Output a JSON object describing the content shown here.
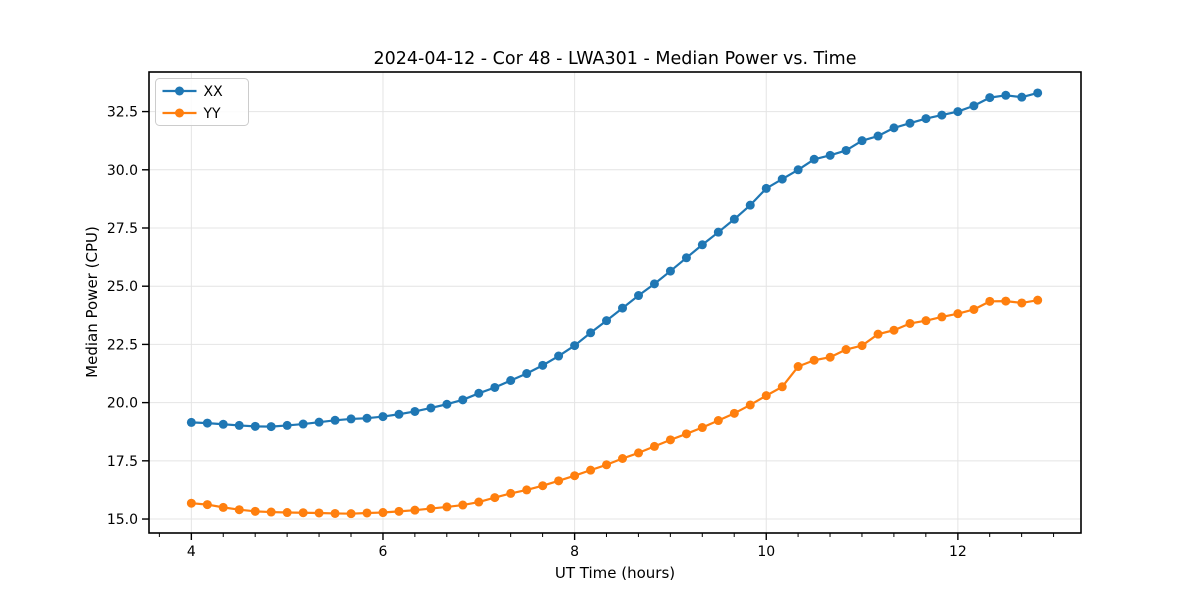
{
  "chart_data": {
    "type": "line",
    "title": "2024-04-12 - Cor 48 - LWA301 - Median Power vs. Time",
    "xlabel": "UT Time (hours)",
    "ylabel": "Median Power (CPU)",
    "xlim": [
      3.558,
      13.285
    ],
    "ylim": [
      14.4,
      34.2
    ],
    "xticks": [
      4,
      6,
      8,
      10,
      12
    ],
    "yticks": [
      15.0,
      17.5,
      20.0,
      22.5,
      25.0,
      27.5,
      30.0,
      32.5
    ],
    "x_minor_step": 0.3333,
    "grid": true,
    "legend_position": "upper left",
    "background_color": "#ffffff",
    "grid_color": "#e4e4e4",
    "x": [
      4.0,
      4.167,
      4.333,
      4.5,
      4.667,
      4.833,
      5.0,
      5.167,
      5.333,
      5.5,
      5.667,
      5.833,
      6.0,
      6.167,
      6.333,
      6.5,
      6.667,
      6.833,
      7.0,
      7.167,
      7.333,
      7.5,
      7.667,
      7.833,
      8.0,
      8.167,
      8.333,
      8.5,
      8.667,
      8.833,
      9.0,
      9.167,
      9.333,
      9.5,
      9.667,
      9.833,
      10.0,
      10.167,
      10.333,
      10.5,
      10.667,
      10.833,
      11.0,
      11.167,
      11.333,
      11.5,
      11.667,
      11.833,
      12.0,
      12.167,
      12.333,
      12.5,
      12.667,
      12.833
    ],
    "series": [
      {
        "name": "XX",
        "color": "#1f77b4",
        "values": [
          19.15,
          19.12,
          19.07,
          19.02,
          18.98,
          18.97,
          19.02,
          19.08,
          19.16,
          19.24,
          19.3,
          19.33,
          19.4,
          19.5,
          19.62,
          19.77,
          19.93,
          20.12,
          20.4,
          20.65,
          20.95,
          21.25,
          21.6,
          22.0,
          22.45,
          23.0,
          23.52,
          24.06,
          24.6,
          25.1,
          25.65,
          26.22,
          26.78,
          27.32,
          27.88,
          28.48,
          29.2,
          29.6,
          30.0,
          30.45,
          30.62,
          30.83,
          31.25,
          31.45,
          31.8,
          32.0,
          32.2,
          32.35,
          32.5,
          32.75,
          33.1,
          33.2,
          33.12,
          33.3
        ]
      },
      {
        "name": "YY",
        "color": "#ff7f0e",
        "values": [
          15.68,
          15.62,
          15.5,
          15.4,
          15.33,
          15.3,
          15.28,
          15.27,
          15.26,
          15.24,
          15.23,
          15.26,
          15.28,
          15.33,
          15.38,
          15.45,
          15.52,
          15.6,
          15.73,
          15.92,
          16.1,
          16.25,
          16.43,
          16.64,
          16.86,
          17.1,
          17.33,
          17.6,
          17.84,
          18.12,
          18.4,
          18.66,
          18.93,
          19.23,
          19.54,
          19.9,
          20.3,
          20.68,
          21.55,
          21.82,
          21.95,
          22.28,
          22.45,
          22.94,
          23.11,
          23.4,
          23.52,
          23.68,
          23.82,
          24.0,
          24.35,
          24.36,
          24.28,
          24.4
        ]
      }
    ]
  }
}
